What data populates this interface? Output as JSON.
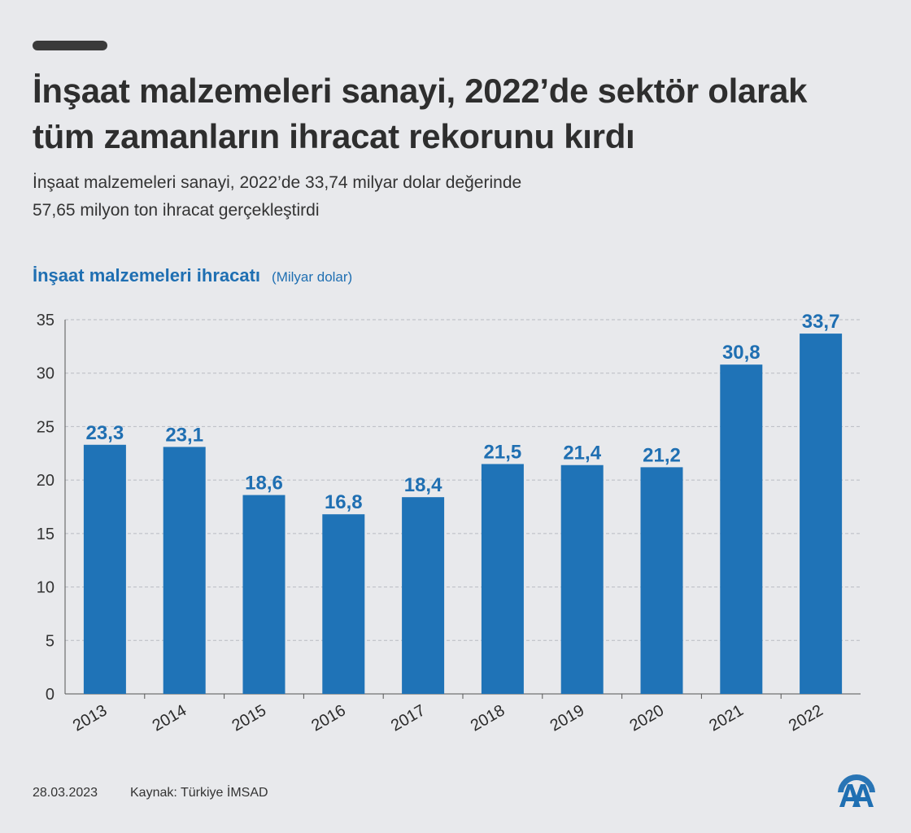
{
  "header": {
    "title_line1": "İnşaat malzemeleri sanayi, 2022’de sektör olarak",
    "title_line2": "tüm zamanların ihracat rekorunu kırdı",
    "subtitle_line1": "İnşaat malzemeleri sanayi, 2022’de 33,74 milyar dolar değerinde",
    "subtitle_line2": "57,65 milyon ton ihracat gerçekleştirdi"
  },
  "chart_data": {
    "type": "bar",
    "title": "İnşaat malzemeleri ihracatı",
    "unit": "(Milyar dolar)",
    "categories": [
      "2013",
      "2014",
      "2015",
      "2016",
      "2017",
      "2018",
      "2019",
      "2020",
      "2021",
      "2022"
    ],
    "values": [
      23.3,
      23.1,
      18.6,
      16.8,
      18.4,
      21.5,
      21.4,
      21.2,
      30.8,
      33.7
    ],
    "value_labels": [
      "23,3",
      "23,1",
      "18,6",
      "16,8",
      "18,4",
      "21,5",
      "21,4",
      "21,2",
      "30,8",
      "33,7"
    ],
    "ylim": [
      0,
      35
    ],
    "yticks": [
      0,
      5,
      10,
      15,
      20,
      25,
      30,
      35
    ],
    "grid": true,
    "bar_color": "#1f73b7",
    "label_color": "#1f6fb2"
  },
  "footer": {
    "date": "28.03.2023",
    "source": "Kaynak: Türkiye İMSAD"
  },
  "logo": {
    "icon": "aa-logo-icon",
    "text": "AA",
    "color": "#1f6fb2"
  }
}
